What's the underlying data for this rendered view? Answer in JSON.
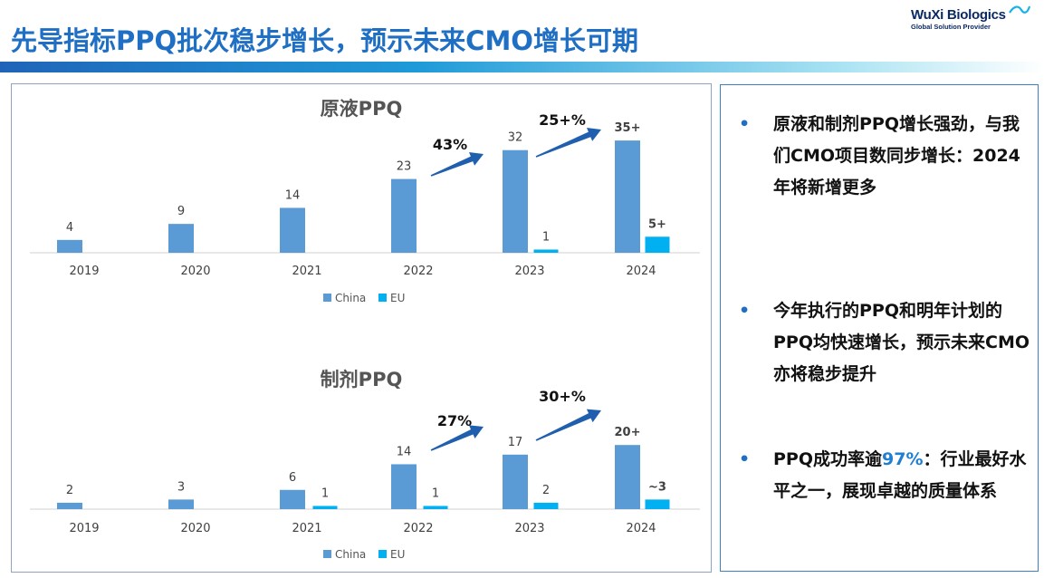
{
  "title": "先导指标PPQ批次稳步增长，预示未来CMO增长可期",
  "logo": {
    "name": "WuXi Biologics",
    "tagline": "Global Solution Provider"
  },
  "chart_data": [
    {
      "type": "bar",
      "title": "原液PPQ",
      "categories": [
        "2019",
        "2020",
        "2021",
        "2022",
        "2023",
        "2024"
      ],
      "series": [
        {
          "name": "China",
          "values": [
            4,
            9,
            14,
            23,
            32,
            35
          ],
          "labels": [
            "4",
            "9",
            "14",
            "23",
            "32",
            "35+"
          ]
        },
        {
          "name": "EU",
          "values": [
            null,
            null,
            null,
            null,
            1,
            5
          ],
          "labels": [
            "",
            "",
            "",
            "",
            "1",
            "5+"
          ]
        }
      ],
      "annotations": [
        {
          "text": "43%",
          "from": "2022",
          "to": "2023"
        },
        {
          "text": "25+%",
          "from": "2023",
          "to": "2024"
        }
      ],
      "legend": [
        "China",
        "EU"
      ],
      "ylim": [
        0,
        40
      ]
    },
    {
      "type": "bar",
      "title": "制剂PPQ",
      "categories": [
        "2019",
        "2020",
        "2021",
        "2022",
        "2023",
        "2024"
      ],
      "series": [
        {
          "name": "China",
          "values": [
            2,
            3,
            6,
            14,
            17,
            20
          ],
          "labels": [
            "2",
            "3",
            "6",
            "14",
            "17",
            "20+"
          ]
        },
        {
          "name": "EU",
          "values": [
            null,
            null,
            1,
            1,
            2,
            3
          ],
          "labels": [
            "",
            "",
            "1",
            "1",
            "2",
            "~3"
          ]
        }
      ],
      "annotations": [
        {
          "text": "27%",
          "from": "2022",
          "to": "2023"
        },
        {
          "text": "30+%",
          "from": "2023",
          "to": "2024"
        }
      ],
      "legend": [
        "China",
        "EU"
      ],
      "ylim": [
        0,
        24
      ]
    }
  ],
  "colors": {
    "china": "#5b9bd5",
    "eu": "#00b0f0",
    "title": "#1f6fc4",
    "arrow": "#1f5fae"
  },
  "bullets": [
    {
      "dot": "•",
      "text": "原液和制剂PPQ增长强劲，与我们CMO项目数同步增长：2024年将新增更多"
    },
    {
      "dot": "•",
      "text": "今年执行的PPQ和明年计划的PPQ均快速增长，预示未来CMO亦将稳步提升"
    },
    {
      "dot": "•",
      "text_before": "PPQ成功率逾",
      "highlight": "97%",
      "text_after": "：行业最好水平之一，展现卓越的质量体系"
    }
  ]
}
